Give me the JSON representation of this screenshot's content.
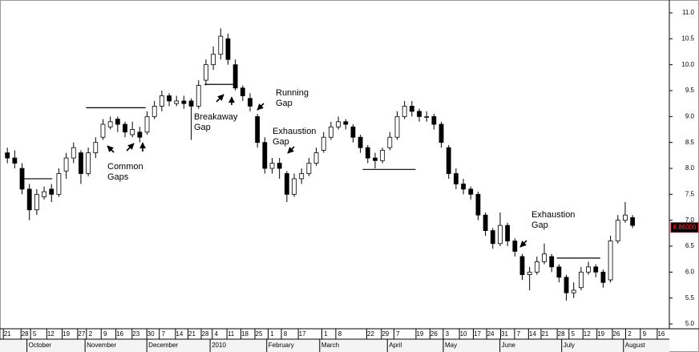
{
  "chart_data": {
    "type": "candlestick",
    "up_color": "#ffffff",
    "down_color": "#000000",
    "xlim": [
      0,
      91
    ],
    "ylim": [
      5.0,
      11.0
    ],
    "yticks": [
      {
        "value": 5.0,
        "label": "5.0"
      },
      5.5,
      {
        "value": 6.0,
        "label": "6.0"
      },
      6.5,
      {
        "value": 7.0,
        "label": "7.0"
      },
      7.5,
      {
        "value": 8.0,
        "label": "8.0"
      },
      8.5,
      {
        "value": 9.0,
        "label": "9.0"
      },
      9.5,
      {
        "value": 10.0,
        "label": "10.0"
      },
      10.5,
      {
        "value": 11.0,
        "label": "11.0"
      }
    ],
    "xticks": [
      {
        "value": 1.0,
        "label": "21"
      },
      {
        "value": 3.4,
        "label": "28"
      },
      {
        "value": 4.7,
        "label": "5"
      },
      {
        "value": 6.9,
        "label": "12"
      },
      {
        "value": 9.0,
        "label": "19"
      },
      {
        "value": 11.1,
        "label": "27"
      },
      {
        "value": 12.3,
        "label": "2"
      },
      {
        "value": 14.3,
        "label": "9"
      },
      {
        "value": 16.3,
        "label": "16"
      },
      {
        "value": 18.5,
        "label": "23"
      },
      {
        "value": 20.5,
        "label": "30"
      },
      {
        "value": 22.2,
        "label": "7"
      },
      {
        "value": 24.4,
        "label": "14"
      },
      {
        "value": 26.1,
        "label": "21"
      },
      {
        "value": 27.9,
        "label": "28"
      },
      {
        "value": 29.4,
        "label": "4"
      },
      {
        "value": 31.4,
        "label": "11"
      },
      {
        "value": 33.3,
        "label": "18"
      },
      {
        "value": 35.2,
        "label": "25"
      },
      {
        "value": 37.0,
        "label": "1"
      },
      {
        "value": 38.8,
        "label": "8"
      },
      {
        "value": 41.1,
        "label": "17"
      },
      {
        "value": 44.3,
        "label": "1"
      },
      {
        "value": 46.2,
        "label": "8"
      },
      {
        "value": 50.4,
        "label": "22"
      },
      {
        "value": 52.4,
        "label": "29"
      },
      {
        "value": 54.1,
        "label": "7"
      },
      {
        "value": 57.1,
        "label": "19"
      },
      {
        "value": 59.0,
        "label": "26"
      },
      {
        "value": 60.8,
        "label": "3"
      },
      {
        "value": 63.0,
        "label": "10"
      },
      {
        "value": 64.9,
        "label": "17"
      },
      {
        "value": 66.7,
        "label": "24"
      },
      {
        "value": 68.6,
        "label": "31"
      },
      {
        "value": 70.5,
        "label": "7"
      },
      {
        "value": 72.4,
        "label": "14"
      },
      {
        "value": 74.1,
        "label": "21"
      },
      {
        "value": 76.3,
        "label": "28"
      },
      {
        "value": 77.9,
        "label": "5"
      },
      {
        "value": 79.8,
        "label": "12"
      },
      {
        "value": 81.7,
        "label": "19"
      },
      {
        "value": 83.8,
        "label": "26"
      },
      {
        "value": 85.6,
        "label": "2"
      },
      {
        "value": 87.6,
        "label": "9"
      },
      {
        "value": 89.9,
        "label": "16"
      }
    ],
    "month_ticks": [
      {
        "value": 4.1,
        "label": "October"
      },
      {
        "value": 12.0,
        "label": "November"
      },
      {
        "value": 20.4,
        "label": "December"
      },
      {
        "value": 29.0,
        "label": "2010"
      },
      {
        "value": 36.7,
        "label": "February"
      },
      {
        "value": 43.9,
        "label": "March"
      },
      {
        "value": 53.1,
        "label": "April"
      },
      {
        "value": 60.7,
        "label": "May"
      },
      {
        "value": 68.4,
        "label": "June"
      },
      {
        "value": 76.8,
        "label": "July"
      },
      {
        "value": 85.2,
        "label": "August"
      }
    ],
    "last_price": {
      "value": 6.86,
      "label": "6.86000"
    },
    "levels": [
      {
        "y": 7.8,
        "x": [
          3.3,
          7.1
        ]
      },
      {
        "y": 9.17,
        "x": [
          11.7,
          19.8
        ]
      },
      {
        "y": 9.62,
        "x": [
          27.8,
          31.9
        ]
      },
      {
        "y": 7.98,
        "x": [
          49.3,
          56.5
        ]
      },
      {
        "y": 6.27,
        "x": [
          75.7,
          81.6
        ]
      }
    ],
    "annotations": [
      {
        "lines": [
          "Common",
          "Gaps"
        ]
      },
      {
        "lines": [
          "Breakaway",
          "Gap"
        ]
      },
      {
        "lines": [
          "Running",
          "Gap"
        ]
      },
      {
        "lines": [
          "Exhaustion",
          "Gap"
        ]
      },
      {
        "lines": [
          "Exhaustion",
          "Gap"
        ]
      }
    ],
    "ohlc": [
      [
        8.3,
        8.4,
        8.1,
        8.2
      ],
      [
        8.2,
        8.35,
        8.0,
        8.1
      ],
      [
        8.0,
        8.1,
        7.5,
        7.6
      ],
      [
        7.6,
        7.7,
        7.0,
        7.2
      ],
      [
        7.2,
        7.6,
        7.1,
        7.5
      ],
      [
        7.45,
        7.65,
        7.4,
        7.55
      ],
      [
        7.6,
        7.7,
        7.35,
        7.5
      ],
      [
        7.5,
        8.0,
        7.45,
        7.9
      ],
      [
        7.95,
        8.3,
        7.8,
        8.2
      ],
      [
        8.2,
        8.5,
        8.1,
        8.4
      ],
      [
        8.3,
        8.35,
        7.7,
        7.9
      ],
      [
        7.9,
        8.4,
        7.85,
        8.3
      ],
      [
        8.3,
        8.6,
        8.2,
        8.5
      ],
      [
        8.6,
        8.95,
        8.55,
        8.85
      ],
      [
        8.8,
        9.0,
        8.75,
        8.9
      ],
      [
        8.95,
        9.0,
        8.7,
        8.85
      ],
      [
        8.85,
        8.9,
        8.6,
        8.7
      ],
      [
        8.65,
        8.9,
        8.6,
        8.75
      ],
      [
        8.7,
        8.8,
        8.5,
        8.6
      ],
      [
        8.7,
        9.1,
        8.65,
        9.0
      ],
      [
        9.0,
        9.3,
        8.95,
        9.2
      ],
      [
        9.2,
        9.5,
        9.1,
        9.4
      ],
      [
        9.4,
        9.45,
        9.2,
        9.3
      ],
      [
        9.25,
        9.4,
        9.2,
        9.3
      ],
      [
        9.3,
        9.4,
        9.15,
        9.25
      ],
      [
        9.3,
        9.35,
        8.55,
        9.2
      ],
      [
        9.2,
        9.7,
        9.15,
        9.6
      ],
      [
        9.7,
        10.1,
        9.6,
        10.0
      ],
      [
        10.0,
        10.35,
        9.9,
        10.2
      ],
      [
        10.2,
        10.7,
        10.1,
        10.55
      ],
      [
        10.5,
        10.6,
        10.0,
        10.1
      ],
      [
        10.0,
        10.1,
        9.5,
        9.55
      ],
      [
        9.55,
        9.6,
        9.3,
        9.4
      ],
      [
        9.35,
        9.45,
        9.1,
        9.2
      ],
      [
        9.0,
        9.05,
        8.4,
        8.5
      ],
      [
        8.5,
        8.6,
        7.9,
        8.0
      ],
      [
        8.0,
        8.2,
        7.9,
        8.1
      ],
      [
        8.1,
        8.2,
        7.8,
        8.0
      ],
      [
        7.9,
        7.95,
        7.35,
        7.5
      ],
      [
        7.5,
        7.9,
        7.45,
        7.8
      ],
      [
        7.8,
        8.0,
        7.7,
        7.9
      ],
      [
        7.9,
        8.2,
        7.85,
        8.1
      ],
      [
        8.1,
        8.4,
        8.05,
        8.3
      ],
      [
        8.35,
        8.7,
        8.3,
        8.6
      ],
      [
        8.6,
        8.9,
        8.55,
        8.8
      ],
      [
        8.8,
        9.0,
        8.75,
        8.9
      ],
      [
        8.9,
        8.95,
        8.75,
        8.85
      ],
      [
        8.8,
        8.85,
        8.5,
        8.6
      ],
      [
        8.6,
        8.65,
        8.3,
        8.4
      ],
      [
        8.4,
        8.45,
        8.1,
        8.2
      ],
      [
        8.2,
        8.3,
        8.0,
        8.15
      ],
      [
        8.15,
        8.4,
        8.1,
        8.35
      ],
      [
        8.4,
        8.7,
        8.35,
        8.6
      ],
      [
        8.6,
        9.1,
        8.55,
        9.0
      ],
      [
        9.0,
        9.3,
        8.95,
        9.2
      ],
      [
        9.2,
        9.3,
        9.0,
        9.1
      ],
      [
        9.1,
        9.15,
        8.9,
        9.0
      ],
      [
        9.0,
        9.1,
        8.9,
        9.0
      ],
      [
        9.0,
        9.05,
        8.75,
        8.85
      ],
      [
        8.85,
        8.9,
        8.4,
        8.5
      ],
      [
        8.4,
        8.45,
        7.8,
        7.9
      ],
      [
        7.9,
        8.0,
        7.6,
        7.7
      ],
      [
        7.7,
        7.8,
        7.5,
        7.6
      ],
      [
        7.6,
        7.65,
        7.4,
        7.5
      ],
      [
        7.5,
        7.55,
        7.0,
        7.1
      ],
      [
        7.1,
        7.15,
        6.7,
        6.8
      ],
      [
        6.8,
        6.85,
        6.45,
        6.55
      ],
      [
        6.55,
        7.15,
        6.5,
        6.9
      ],
      [
        6.9,
        6.95,
        6.5,
        6.6
      ],
      [
        6.6,
        6.65,
        6.3,
        6.4
      ],
      [
        6.3,
        6.35,
        5.85,
        5.95
      ],
      [
        5.95,
        6.1,
        5.65,
        6.0
      ],
      [
        6.0,
        6.3,
        5.95,
        6.2
      ],
      [
        6.2,
        6.55,
        6.15,
        6.35
      ],
      [
        6.3,
        6.35,
        6.0,
        6.1
      ],
      [
        6.1,
        6.15,
        5.8,
        5.9
      ],
      [
        5.9,
        5.95,
        5.45,
        5.6
      ],
      [
        5.6,
        5.8,
        5.5,
        5.65
      ],
      [
        5.7,
        6.1,
        5.65,
        6.0
      ],
      [
        6.0,
        6.2,
        5.95,
        6.1
      ],
      [
        6.1,
        6.15,
        5.9,
        6.0
      ],
      [
        6.0,
        6.05,
        5.7,
        5.8
      ],
      [
        5.85,
        6.7,
        5.8,
        6.6
      ],
      [
        6.6,
        7.1,
        6.55,
        7.0
      ],
      [
        7.0,
        7.35,
        6.95,
        7.1
      ],
      [
        7.05,
        7.1,
        6.85,
        6.9
      ]
    ]
  }
}
